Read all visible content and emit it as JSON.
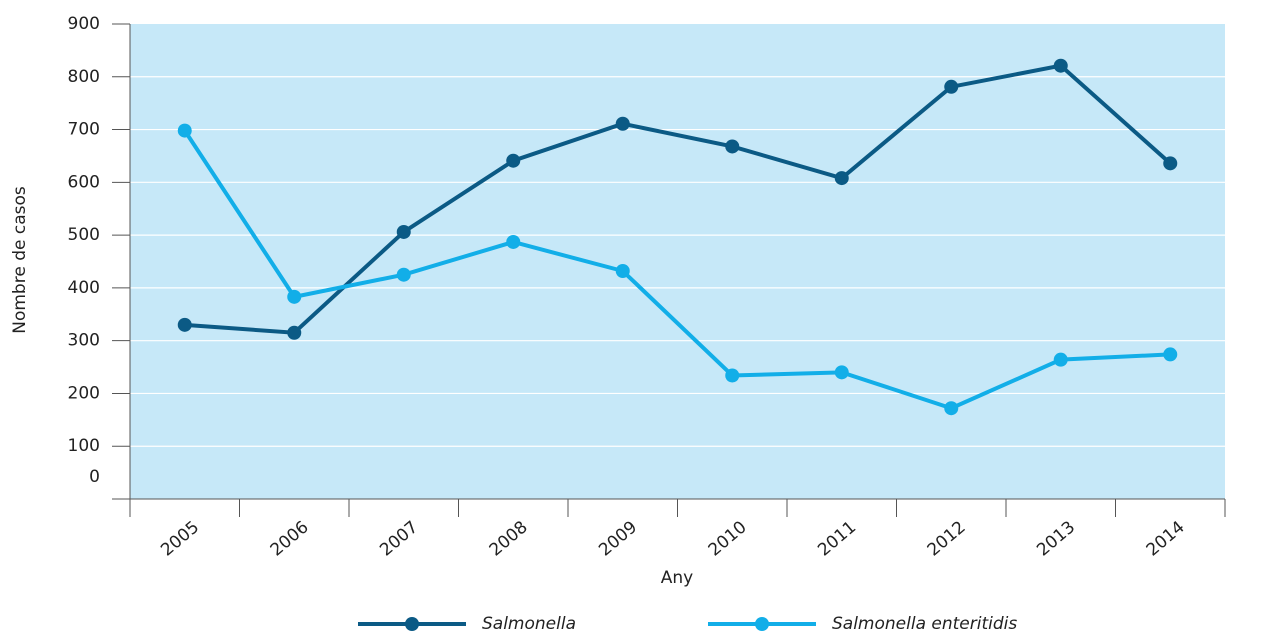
{
  "chart_data": {
    "type": "line",
    "x_label": "Any",
    "y_label": "Nombre de casos",
    "categories": [
      "2005",
      "2006",
      "2007",
      "2008",
      "2009",
      "2010",
      "2011",
      "2012",
      "2013",
      "2014"
    ],
    "series": [
      {
        "name": "Salmonella",
        "color": "#0b5a85",
        "values": [
          330,
          315,
          506,
          641,
          711,
          668,
          608,
          781,
          821,
          636
        ]
      },
      {
        "name": "Salmonella enteritidis",
        "color": "#12aee8",
        "values": [
          698,
          383,
          425,
          487,
          432,
          234,
          240,
          172,
          264,
          274
        ]
      }
    ],
    "ylim": [
      0,
      900
    ],
    "yticks": [
      0,
      100,
      200,
      300,
      400,
      500,
      600,
      700,
      800,
      900
    ],
    "grid": true,
    "plot_background": "#c6e8f8",
    "legend": "bottom"
  }
}
